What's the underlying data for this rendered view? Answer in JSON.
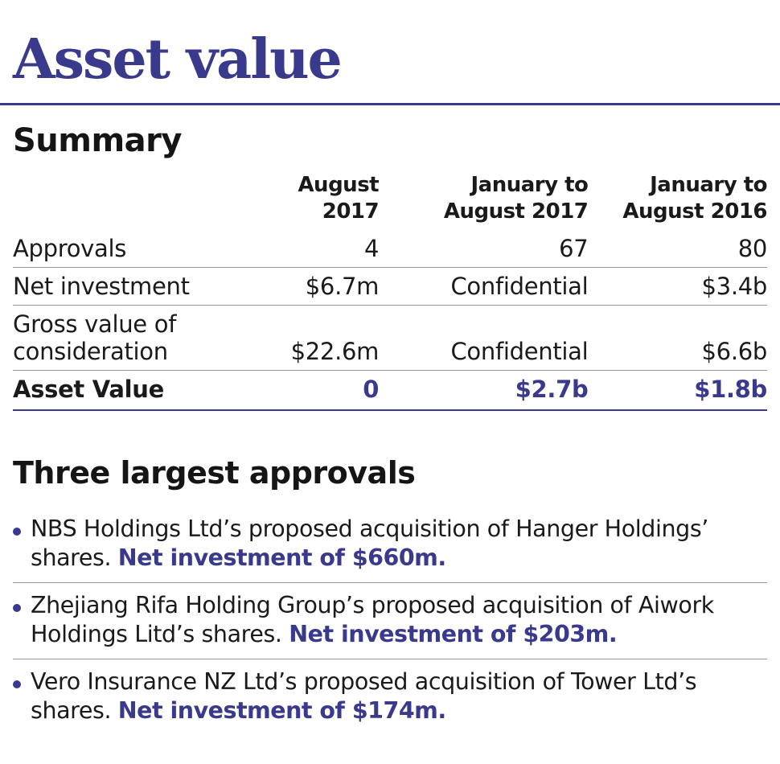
{
  "title": "Asset value",
  "summary": {
    "heading": "Summary",
    "columns": [
      "",
      "August 2017",
      "January to August 2017",
      "January to August 2016"
    ],
    "rows": [
      {
        "label": "Approvals",
        "values": [
          "4",
          "67",
          "80"
        ]
      },
      {
        "label": "Net investment",
        "values": [
          "$6.7m",
          "Confidential",
          "$3.4b"
        ]
      },
      {
        "label": "Gross value of consideration",
        "values": [
          "$22.6m",
          "Confidential",
          "$6.6b"
        ]
      }
    ],
    "total": {
      "label": "Asset Value",
      "values": [
        "0",
        "$2.7b",
        "$1.8b"
      ]
    }
  },
  "largest": {
    "heading": "Three largest approvals",
    "items": [
      {
        "text": "NBS Holdings Ltd’s proposed acquisition of Hanger Holdings’ shares.",
        "highlight": "Net investment of $660m."
      },
      {
        "text": "Zhejiang Rifa Holding Group’s proposed acquisition of Aiwork Holdings Litd’s shares.",
        "highlight": "Net investment of $203m."
      },
      {
        "text": "Vero Insurance NZ Ltd’s proposed acquisition of Tower Ltd’s shares.",
        "highlight": "Net investment of $174m."
      }
    ]
  },
  "colors": {
    "accent": "#3a3a8c",
    "text": "#1a1a1a",
    "rule": "#9a9a9a"
  }
}
